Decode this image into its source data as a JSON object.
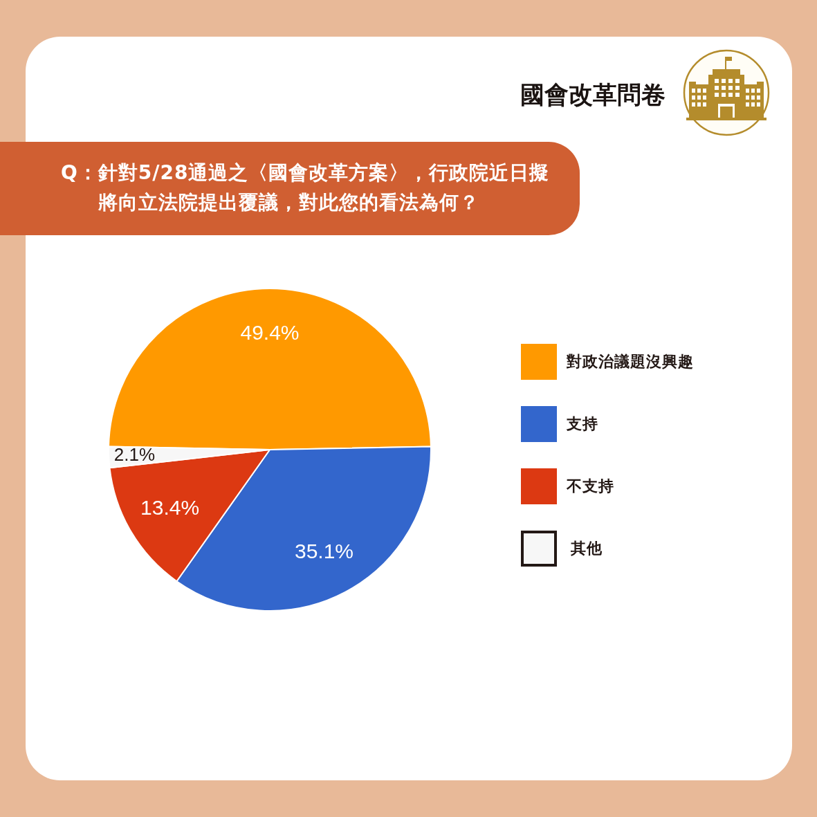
{
  "chart_data": {
    "type": "pie",
    "title": "國會改革問卷",
    "subtitle": "Q：針對5/28通過之〈國會改革方案〉，行政院近日擬將向立法院提出覆議，對此您的看法為何？",
    "categories": [
      "對政治議題沒興趣",
      "支持",
      "不支持",
      "其他"
    ],
    "values": [
      49.4,
      35.1,
      13.4,
      2.1
    ],
    "colors": [
      "#ff9900",
      "#3366cc",
      "#dc3912",
      "#f7f7f7"
    ],
    "value_labels": [
      "49.4%",
      "35.1%",
      "13.4%",
      "2.1%"
    ],
    "legend": "right"
  }
}
